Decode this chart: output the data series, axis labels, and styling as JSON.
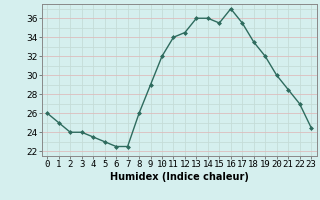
{
  "x": [
    0,
    1,
    2,
    3,
    4,
    5,
    6,
    7,
    8,
    9,
    10,
    11,
    12,
    13,
    14,
    15,
    16,
    17,
    18,
    19,
    20,
    21,
    22,
    23
  ],
  "y": [
    26,
    25,
    24,
    24,
    23.5,
    23,
    22.5,
    22.5,
    26,
    29,
    32,
    34,
    34.5,
    36,
    36,
    35.5,
    37,
    35.5,
    33.5,
    32,
    30,
    28.5,
    27,
    24.5
  ],
  "line_color": "#2e6b5e",
  "marker_color": "#2e6b5e",
  "bg_color": "#d5efee",
  "grid_color_vert": "#c5dcd8",
  "grid_color_horiz": "#ddbdbd",
  "xlabel": "Humidex (Indice chaleur)",
  "xlabel_fontsize": 7,
  "ylabel_ticks": [
    22,
    24,
    26,
    28,
    30,
    32,
    34,
    36
  ],
  "xtick_labels": [
    "0",
    "1",
    "2",
    "3",
    "4",
    "5",
    "6",
    "7",
    "8",
    "9",
    "10",
    "11",
    "12",
    "13",
    "14",
    "15",
    "16",
    "17",
    "18",
    "19",
    "20",
    "21",
    "22",
    "23"
  ],
  "xlim": [
    -0.5,
    23.5
  ],
  "ylim": [
    21.5,
    37.5
  ],
  "tick_fontsize": 6.5
}
